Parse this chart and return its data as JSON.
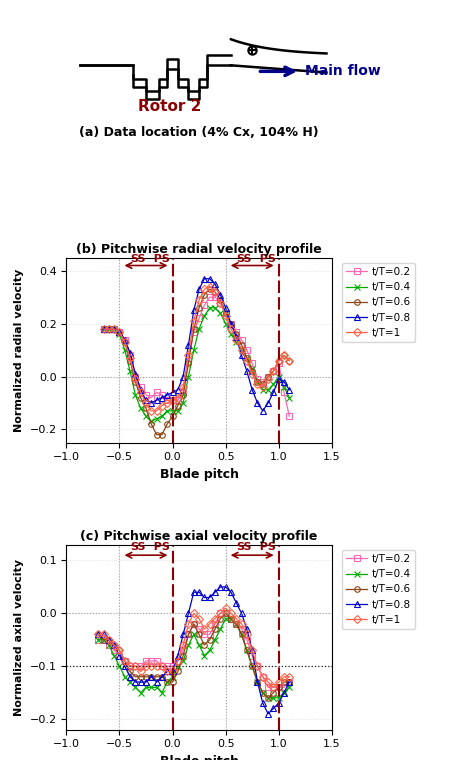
{
  "title_a": "(a) Data location (4% Cx, 104% H)",
  "title_b": "(b) Pitchwise radial velocity profile",
  "title_c": "(c) Pitchwise axial velocity profile",
  "ylabel_b": "Normalized radial velocity",
  "ylabel_c": "Normalized axial velocity",
  "xlabel": "Blade pitch",
  "xlim": [
    -1,
    1.5
  ],
  "xticks": [
    -1,
    -0.5,
    0,
    0.5,
    1,
    1.5
  ],
  "ylim_b": [
    -0.25,
    0.45
  ],
  "yticks_b": [
    -0.2,
    0,
    0.2,
    0.4
  ],
  "ylim_c": [
    -0.22,
    0.13
  ],
  "yticks_c": [
    -0.2,
    -0.1,
    0,
    0.1
  ],
  "vlines": [
    0.0,
    1.0
  ],
  "dotted_vlines": [
    -0.5,
    0.5
  ],
  "hline_b": 0.0,
  "hline_c": -0.1,
  "colors": {
    "t02": "#ff69b4",
    "t04": "#00aa00",
    "t06": "#8b4513",
    "t08": "#0000cd",
    "t10": "#ff6347"
  },
  "series_b": {
    "t02": {
      "x": [
        -0.65,
        -0.6,
        -0.55,
        -0.5,
        -0.45,
        -0.4,
        -0.35,
        -0.3,
        -0.25,
        -0.2,
        -0.15,
        -0.1,
        -0.05,
        0.0,
        0.05,
        0.1,
        0.15,
        0.2,
        0.25,
        0.3,
        0.35,
        0.4,
        0.45,
        0.5,
        0.55,
        0.6,
        0.65,
        0.7,
        0.75,
        0.8,
        0.85,
        0.9,
        0.95,
        1.0,
        1.05,
        1.1
      ],
      "y": [
        0.18,
        0.18,
        0.18,
        0.17,
        0.14,
        0.08,
        0.0,
        -0.04,
        -0.07,
        -0.08,
        -0.06,
        -0.07,
        -0.09,
        -0.09,
        -0.09,
        -0.06,
        0.06,
        0.17,
        0.22,
        0.27,
        0.3,
        0.3,
        0.28,
        0.24,
        0.2,
        0.17,
        0.14,
        0.1,
        0.05,
        -0.01,
        -0.02,
        -0.0,
        0.02,
        0.05,
        -0.06,
        -0.15
      ]
    },
    "t04": {
      "x": [
        -0.65,
        -0.6,
        -0.55,
        -0.5,
        -0.45,
        -0.4,
        -0.35,
        -0.3,
        -0.25,
        -0.2,
        -0.15,
        -0.1,
        -0.05,
        0.0,
        0.05,
        0.1,
        0.15,
        0.2,
        0.25,
        0.3,
        0.35,
        0.4,
        0.45,
        0.5,
        0.55,
        0.6,
        0.65,
        0.7,
        0.75,
        0.8,
        0.85,
        0.9,
        0.95,
        1.0,
        1.05,
        1.1
      ],
      "y": [
        0.18,
        0.18,
        0.18,
        0.16,
        0.1,
        0.02,
        -0.07,
        -0.12,
        -0.15,
        -0.17,
        -0.16,
        -0.15,
        -0.13,
        -0.13,
        -0.13,
        -0.1,
        0.0,
        0.1,
        0.18,
        0.23,
        0.26,
        0.26,
        0.24,
        0.2,
        0.16,
        0.13,
        0.1,
        0.07,
        0.03,
        -0.02,
        -0.05,
        -0.05,
        -0.03,
        0.0,
        -0.04,
        -0.08
      ]
    },
    "t06": {
      "x": [
        -0.65,
        -0.6,
        -0.55,
        -0.5,
        -0.45,
        -0.4,
        -0.35,
        -0.3,
        -0.25,
        -0.2,
        -0.15,
        -0.1,
        -0.05,
        0.0,
        0.05,
        0.1,
        0.15,
        0.2,
        0.25,
        0.3,
        0.35,
        0.4,
        0.45,
        0.5,
        0.55,
        0.6,
        0.65,
        0.7,
        0.75,
        0.8,
        0.85,
        0.9,
        0.95,
        1.0,
        1.05,
        1.1
      ],
      "y": [
        0.18,
        0.18,
        0.18,
        0.17,
        0.13,
        0.06,
        -0.02,
        -0.08,
        -0.12,
        -0.18,
        -0.22,
        -0.22,
        -0.18,
        -0.15,
        -0.11,
        -0.07,
        0.05,
        0.18,
        0.26,
        0.31,
        0.33,
        0.32,
        0.29,
        0.24,
        0.2,
        0.16,
        0.12,
        0.07,
        0.02,
        -0.02,
        -0.03,
        0.0,
        0.02,
        0.06,
        0.08,
        0.06
      ]
    },
    "t08": {
      "x": [
        -0.65,
        -0.6,
        -0.55,
        -0.5,
        -0.45,
        -0.4,
        -0.35,
        -0.3,
        -0.25,
        -0.2,
        -0.15,
        -0.1,
        -0.05,
        0.0,
        0.05,
        0.1,
        0.15,
        0.2,
        0.25,
        0.3,
        0.35,
        0.4,
        0.45,
        0.5,
        0.55,
        0.6,
        0.65,
        0.7,
        0.75,
        0.8,
        0.85,
        0.9,
        0.95,
        1.0,
        1.05,
        1.1
      ],
      "y": [
        0.18,
        0.18,
        0.18,
        0.17,
        0.14,
        0.09,
        0.01,
        -0.05,
        -0.09,
        -0.1,
        -0.09,
        -0.08,
        -0.07,
        -0.06,
        -0.05,
        0.0,
        0.12,
        0.25,
        0.33,
        0.37,
        0.37,
        0.35,
        0.31,
        0.26,
        0.2,
        0.15,
        0.08,
        0.02,
        -0.05,
        -0.1,
        -0.13,
        -0.1,
        -0.06,
        -0.01,
        -0.02,
        -0.05
      ]
    },
    "t10": {
      "x": [
        -0.65,
        -0.6,
        -0.55,
        -0.5,
        -0.45,
        -0.4,
        -0.35,
        -0.3,
        -0.25,
        -0.2,
        -0.15,
        -0.1,
        -0.05,
        0.0,
        0.05,
        0.1,
        0.15,
        0.2,
        0.25,
        0.3,
        0.35,
        0.4,
        0.45,
        0.5,
        0.55,
        0.6,
        0.65,
        0.7,
        0.75,
        0.8,
        0.85,
        0.9,
        0.95,
        1.0,
        1.05,
        1.1
      ],
      "y": [
        0.18,
        0.18,
        0.18,
        0.17,
        0.13,
        0.07,
        -0.01,
        -0.06,
        -0.1,
        -0.13,
        -0.13,
        -0.11,
        -0.1,
        -0.09,
        -0.08,
        -0.04,
        0.08,
        0.21,
        0.29,
        0.33,
        0.34,
        0.32,
        0.28,
        0.23,
        0.18,
        0.14,
        0.1,
        0.06,
        0.01,
        -0.03,
        -0.04,
        -0.01,
        0.02,
        0.06,
        0.08,
        0.06
      ]
    }
  },
  "series_c": {
    "t02": {
      "x": [
        -0.7,
        -0.65,
        -0.6,
        -0.55,
        -0.5,
        -0.45,
        -0.4,
        -0.35,
        -0.3,
        -0.25,
        -0.2,
        -0.15,
        -0.1,
        -0.05,
        0.0,
        0.05,
        0.1,
        0.15,
        0.2,
        0.25,
        0.3,
        0.35,
        0.4,
        0.45,
        0.5,
        0.55,
        0.6,
        0.65,
        0.7,
        0.75,
        0.8,
        0.85,
        0.9,
        0.95,
        1.0,
        1.05,
        1.1
      ],
      "y": [
        -0.05,
        -0.05,
        -0.06,
        -0.07,
        -0.08,
        -0.09,
        -0.1,
        -0.1,
        -0.1,
        -0.09,
        -0.09,
        -0.09,
        -0.1,
        -0.1,
        -0.1,
        -0.09,
        -0.07,
        -0.04,
        -0.02,
        -0.03,
        -0.04,
        -0.04,
        -0.02,
        0.0,
        0.0,
        -0.01,
        -0.02,
        -0.03,
        -0.05,
        -0.08,
        -0.1,
        -0.12,
        -0.14,
        -0.14,
        -0.14,
        -0.14,
        -0.13
      ]
    },
    "t04": {
      "x": [
        -0.7,
        -0.65,
        -0.6,
        -0.55,
        -0.5,
        -0.45,
        -0.4,
        -0.35,
        -0.3,
        -0.25,
        -0.2,
        -0.15,
        -0.1,
        -0.05,
        0.0,
        0.05,
        0.1,
        0.15,
        0.2,
        0.25,
        0.3,
        0.35,
        0.4,
        0.45,
        0.5,
        0.55,
        0.6,
        0.65,
        0.7,
        0.75,
        0.8,
        0.85,
        0.9,
        0.95,
        1.0,
        1.05,
        1.1
      ],
      "y": [
        -0.05,
        -0.05,
        -0.06,
        -0.08,
        -0.1,
        -0.12,
        -0.13,
        -0.14,
        -0.15,
        -0.14,
        -0.14,
        -0.14,
        -0.15,
        -0.13,
        -0.12,
        -0.1,
        -0.09,
        -0.06,
        -0.04,
        -0.06,
        -0.08,
        -0.07,
        -0.05,
        -0.03,
        -0.01,
        -0.01,
        -0.02,
        -0.04,
        -0.07,
        -0.1,
        -0.13,
        -0.15,
        -0.16,
        -0.16,
        -0.16,
        -0.15,
        -0.14
      ]
    },
    "t06": {
      "x": [
        -0.7,
        -0.65,
        -0.6,
        -0.55,
        -0.5,
        -0.45,
        -0.4,
        -0.35,
        -0.3,
        -0.25,
        -0.2,
        -0.15,
        -0.1,
        -0.05,
        0.0,
        0.05,
        0.1,
        0.15,
        0.2,
        0.25,
        0.3,
        0.35,
        0.4,
        0.45,
        0.5,
        0.55,
        0.6,
        0.65,
        0.7,
        0.75,
        0.8,
        0.85,
        0.9,
        0.95,
        1.0,
        1.05,
        1.1
      ],
      "y": [
        -0.04,
        -0.05,
        -0.05,
        -0.06,
        -0.07,
        -0.09,
        -0.11,
        -0.12,
        -0.12,
        -0.12,
        -0.12,
        -0.12,
        -0.12,
        -0.13,
        -0.13,
        -0.11,
        -0.08,
        -0.04,
        -0.02,
        -0.04,
        -0.06,
        -0.05,
        -0.03,
        -0.01,
        0.0,
        -0.01,
        -0.02,
        -0.04,
        -0.07,
        -0.1,
        -0.13,
        -0.15,
        -0.16,
        -0.15,
        -0.14,
        -0.13,
        -0.13
      ]
    },
    "t08": {
      "x": [
        -0.7,
        -0.65,
        -0.6,
        -0.55,
        -0.5,
        -0.45,
        -0.4,
        -0.35,
        -0.3,
        -0.25,
        -0.2,
        -0.15,
        -0.1,
        -0.05,
        0.0,
        0.05,
        0.1,
        0.15,
        0.2,
        0.25,
        0.3,
        0.35,
        0.4,
        0.45,
        0.5,
        0.55,
        0.6,
        0.65,
        0.7,
        0.75,
        0.8,
        0.85,
        0.9,
        0.95,
        1.0,
        1.05,
        1.1
      ],
      "y": [
        -0.04,
        -0.04,
        -0.05,
        -0.06,
        -0.08,
        -0.1,
        -0.12,
        -0.13,
        -0.13,
        -0.13,
        -0.12,
        -0.13,
        -0.12,
        -0.11,
        -0.11,
        -0.08,
        -0.04,
        0.0,
        0.04,
        0.04,
        0.03,
        0.03,
        0.04,
        0.05,
        0.05,
        0.04,
        0.02,
        0.0,
        -0.03,
        -0.07,
        -0.13,
        -0.17,
        -0.19,
        -0.18,
        -0.17,
        -0.15,
        -0.13
      ]
    },
    "t10": {
      "x": [
        -0.7,
        -0.65,
        -0.6,
        -0.55,
        -0.5,
        -0.45,
        -0.4,
        -0.35,
        -0.3,
        -0.25,
        -0.2,
        -0.15,
        -0.1,
        -0.05,
        0.0,
        0.05,
        0.1,
        0.15,
        0.2,
        0.25,
        0.3,
        0.35,
        0.4,
        0.45,
        0.5,
        0.55,
        0.6,
        0.65,
        0.7,
        0.75,
        0.8,
        0.85,
        0.9,
        0.95,
        1.0,
        1.05,
        1.1
      ],
      "y": [
        -0.04,
        -0.04,
        -0.05,
        -0.06,
        -0.07,
        -0.09,
        -0.1,
        -0.1,
        -0.11,
        -0.1,
        -0.1,
        -0.1,
        -0.1,
        -0.11,
        -0.11,
        -0.09,
        -0.06,
        -0.02,
        0.0,
        -0.01,
        -0.03,
        -0.02,
        -0.01,
        0.0,
        0.01,
        0.0,
        -0.01,
        -0.02,
        -0.04,
        -0.07,
        -0.1,
        -0.12,
        -0.13,
        -0.14,
        -0.13,
        -0.12,
        -0.12
      ]
    }
  },
  "legend_labels": [
    "t/T=0.2",
    "t/T=0.4",
    "t/T=0.6",
    "t/T=0.8",
    "t/T=1"
  ],
  "marker_keys": [
    "s",
    "x",
    "o",
    "^",
    "D"
  ],
  "marker_size": 4,
  "vline_color": "#8b0000",
  "dotted_color": "#888888",
  "annotation_color": "#8b0000",
  "rotor_text": "Rotor 2",
  "flow_text": "Main flow",
  "rotor_color": "#8b0000",
  "flow_color": "#00008b"
}
